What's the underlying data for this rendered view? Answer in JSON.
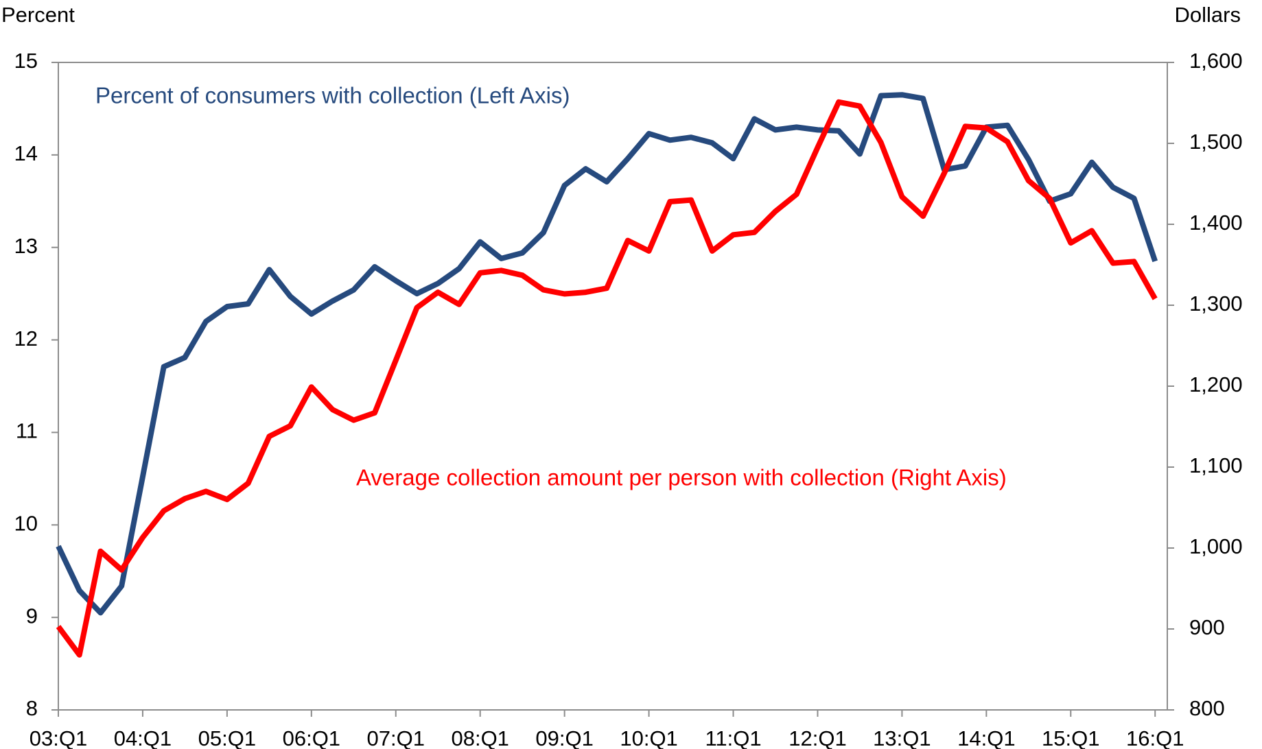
{
  "chart_data": {
    "type": "line",
    "y_label": "Percent",
    "y2_label": "Dollars",
    "categories": [
      "03:Q1",
      null,
      null,
      null,
      "04:Q1",
      null,
      null,
      null,
      "05:Q1",
      null,
      null,
      null,
      "06:Q1",
      null,
      null,
      null,
      "07:Q1",
      null,
      null,
      null,
      "08:Q1",
      null,
      null,
      null,
      "09:Q1",
      null,
      null,
      null,
      "10:Q1",
      null,
      null,
      null,
      "11:Q1",
      null,
      null,
      null,
      "12:Q1",
      null,
      null,
      null,
      "13:Q1",
      null,
      null,
      null,
      "14:Q1",
      null,
      null,
      null,
      "15:Q1",
      null,
      null,
      null,
      "16:Q1"
    ],
    "series": [
      {
        "name": "Percent of consumers with collection (Left Axis)",
        "color": "#264a7e",
        "axis": "y",
        "values": [
          9.77,
          9.29,
          9.05,
          9.34,
          10.52,
          11.71,
          11.81,
          12.2,
          12.36,
          12.39,
          12.76,
          12.47,
          12.28,
          12.42,
          12.54,
          12.79,
          12.64,
          12.5,
          12.61,
          12.77,
          13.06,
          12.88,
          12.94,
          13.16,
          13.67,
          13.85,
          13.71,
          13.96,
          14.23,
          14.16,
          14.19,
          14.13,
          13.96,
          14.39,
          14.27,
          14.3,
          14.27,
          14.26,
          14.01,
          14.64,
          14.65,
          14.61,
          13.84,
          13.88,
          14.3,
          14.32,
          13.95,
          13.5,
          13.58,
          13.92,
          13.65,
          13.53,
          12.85
        ]
      },
      {
        "name": "Average collection amount per person with collection (Right Axis)",
        "color": "#ff0000",
        "axis": "y2",
        "values": [
          903,
          868,
          996,
          973,
          1013,
          1046,
          1061,
          1070,
          1060,
          1080,
          1138,
          1151,
          1199,
          1171,
          1158,
          1167,
          1232,
          1297,
          1316,
          1301,
          1340,
          1343,
          1337,
          1319,
          1314,
          1316,
          1321,
          1380,
          1367,
          1428,
          1430,
          1367,
          1387,
          1390,
          1416,
          1437,
          1495,
          1551,
          1546,
          1501,
          1434,
          1410,
          1463,
          1521,
          1519,
          1502,
          1454,
          1432,
          1377,
          1392,
          1352,
          1354,
          1308
        ]
      }
    ],
    "ylim": [
      8,
      15
    ],
    "yticks": [
      8,
      9,
      10,
      11,
      12,
      13,
      14,
      15
    ],
    "y2lim": [
      800,
      1600
    ],
    "y2ticks": [
      800,
      900,
      {
        "value": 1000,
        "label": "1,000"
      },
      {
        "value": 1100,
        "label": "1,100"
      },
      {
        "value": 1200,
        "label": "1,200"
      },
      {
        "value": 1300,
        "label": "1,300"
      },
      {
        "value": 1400,
        "label": "1,400"
      },
      {
        "value": 1500,
        "label": "1,500"
      },
      {
        "value": 1600,
        "label": "1,600"
      }
    ],
    "grid": false
  }
}
